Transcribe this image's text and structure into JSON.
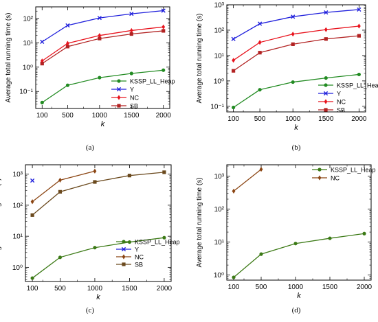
{
  "chart_data": [
    {
      "panel": "(a)",
      "type": "line",
      "yscale": "log",
      "ylim": [
        0.02,
        300
      ],
      "yticks": [
        {
          "v": 0.1,
          "label": "10⁻¹"
        },
        {
          "v": 1,
          "label": "10⁰"
        },
        {
          "v": 10,
          "label": "10¹"
        },
        {
          "v": 100,
          "label": "10²"
        }
      ],
      "x": [
        100,
        500,
        1000,
        1500,
        2000
      ],
      "xlabel": "k",
      "ylabel": "Average total running time (s)",
      "legend_position": "bottom-right",
      "series": [
        {
          "name": "KSSP_LL_Heap",
          "color": "#228B22",
          "marker": "circle",
          "x": [
            100,
            500,
            1000,
            1500,
            2000
          ],
          "values": [
            0.035,
            0.18,
            0.37,
            0.55,
            0.75
          ]
        },
        {
          "name": "Y",
          "color": "#1f1fdc",
          "marker": "x",
          "x": [
            100,
            500,
            1000,
            1500,
            2000
          ],
          "values": [
            11,
            52,
            105,
            155,
            210
          ]
        },
        {
          "name": "NC",
          "color": "#e8141e",
          "marker": "diamond",
          "x": [
            100,
            500,
            1000,
            1500,
            2000
          ],
          "values": [
            1.8,
            9.5,
            20,
            32,
            45
          ]
        },
        {
          "name": "SB",
          "color": "#b22222",
          "marker": "square",
          "x": [
            100,
            500,
            1000,
            1500,
            2000
          ],
          "values": [
            1.4,
            7,
            15,
            23,
            31
          ]
        }
      ]
    },
    {
      "panel": "(b)",
      "type": "line",
      "yscale": "log",
      "ylim": [
        0.06,
        1000
      ],
      "yticks": [
        {
          "v": 0.1,
          "label": "10⁻¹"
        },
        {
          "v": 1,
          "label": "10⁰"
        },
        {
          "v": 10,
          "label": "10¹"
        },
        {
          "v": 100,
          "label": "10²"
        },
        {
          "v": 1000,
          "label": "10³"
        }
      ],
      "x": [
        100,
        500,
        1000,
        1500,
        2000
      ],
      "xlabel": "k",
      "ylabel": "Average total running time (s)",
      "legend_position": "bottom-right",
      "series": [
        {
          "name": "KSSP_LL_Heap",
          "color": "#228B22",
          "marker": "circle",
          "x": [
            100,
            500,
            1000,
            1500,
            2000
          ],
          "values": [
            0.09,
            0.45,
            0.9,
            1.3,
            1.8
          ]
        },
        {
          "name": "Y",
          "color": "#1f1fdc",
          "marker": "x",
          "x": [
            100,
            500,
            1000,
            1500,
            2000
          ],
          "values": [
            45,
            180,
            340,
            500,
            650
          ]
        },
        {
          "name": "NC",
          "color": "#e8141e",
          "marker": "diamond",
          "x": [
            100,
            500,
            1000,
            1500,
            2000
          ],
          "values": [
            6.5,
            33,
            70,
            105,
            145
          ]
        },
        {
          "name": "SB",
          "color": "#b22222",
          "marker": "square",
          "x": [
            100,
            500,
            1000,
            1500,
            2000
          ],
          "values": [
            2.5,
            13,
            28,
            45,
            60
          ]
        }
      ]
    },
    {
      "panel": "(c)",
      "type": "line",
      "yscale": "log",
      "ylim": [
        0.35,
        2000
      ],
      "yticks": [
        {
          "v": 1,
          "label": "10⁰"
        },
        {
          "v": 10,
          "label": "10¹"
        },
        {
          "v": 100,
          "label": "10²"
        },
        {
          "v": 1000,
          "label": "10³"
        }
      ],
      "x": [
        100,
        500,
        1000,
        1500,
        2000
      ],
      "xlabel": "k",
      "ylabel": "Average total running time (s)",
      "legend_position": "bottom-right",
      "series": [
        {
          "name": "KSSP_LL_Heap",
          "color": "#3c7a16",
          "marker": "circle",
          "x": [
            100,
            500,
            1000,
            1500,
            2000
          ],
          "values": [
            0.45,
            2.1,
            4.3,
            6.5,
            9
          ]
        },
        {
          "name": "Y",
          "color": "#1f1fdc",
          "marker": "x",
          "x": [
            100
          ],
          "values": [
            620
          ]
        },
        {
          "name": "NC",
          "color": "#8b4513",
          "marker": "diamond",
          "x": [
            100,
            500,
            1000
          ],
          "values": [
            130,
            640,
            1250
          ]
        },
        {
          "name": "SB",
          "color": "#6b4a1e",
          "marker": "square",
          "x": [
            100,
            500,
            1000,
            1500,
            2000
          ],
          "values": [
            48,
            270,
            560,
            900,
            1150
          ]
        }
      ]
    },
    {
      "panel": "(d)",
      "type": "line",
      "yscale": "log",
      "ylim": [
        0.7,
        2200
      ],
      "yticks": [
        {
          "v": 1,
          "label": "10⁰"
        },
        {
          "v": 10,
          "label": "10¹"
        },
        {
          "v": 100,
          "label": "10²"
        },
        {
          "v": 1000,
          "label": "10³"
        }
      ],
      "x": [
        100,
        500,
        1000,
        1500,
        2000
      ],
      "xlabel": "k",
      "ylabel": "Average total running time (s)",
      "legend_position": "top-right",
      "series": [
        {
          "name": "KSSP_LL_Heap",
          "color": "#3c7a16",
          "marker": "circle",
          "x": [
            100,
            500,
            1000,
            1500,
            2000
          ],
          "values": [
            0.85,
            4.3,
            9,
            13,
            18
          ]
        },
        {
          "name": "NC",
          "color": "#8b4513",
          "marker": "diamond",
          "x": [
            100,
            500
          ],
          "values": [
            350,
            1600
          ]
        }
      ]
    }
  ],
  "captions": [
    "(a)",
    "(b)",
    "(c)",
    "(d)"
  ],
  "tick_x_labels": [
    "100",
    "500",
    "1000",
    "1500",
    "2000"
  ]
}
